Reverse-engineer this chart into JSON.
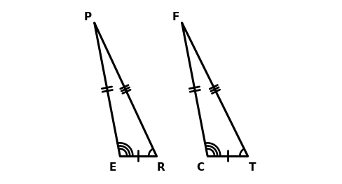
{
  "triangle1": {
    "P": [
      0.08,
      0.88
    ],
    "E": [
      0.22,
      0.15
    ],
    "R": [
      0.42,
      0.15
    ]
  },
  "triangle2": {
    "F": [
      0.56,
      0.88
    ],
    "C": [
      0.7,
      0.15
    ],
    "T": [
      0.92,
      0.15
    ]
  },
  "lw": 2.2,
  "color": "#000000",
  "bg_color": "#ffffff",
  "figsize": [
    4.88,
    2.63
  ],
  "dpi": 100,
  "xlim": [
    0.0,
    1.0
  ],
  "ylim": [
    0.0,
    1.0
  ]
}
